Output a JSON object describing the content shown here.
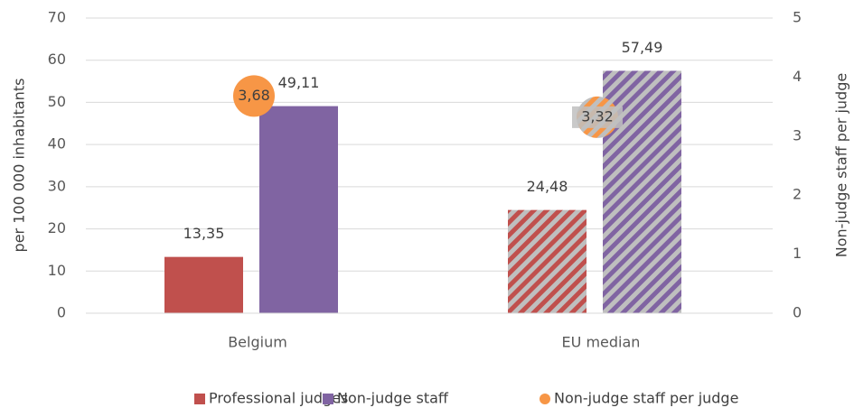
{
  "chart_data": {
    "type": "bar",
    "categories": [
      "Belgium",
      "EU median"
    ],
    "hatch": [
      false,
      true
    ],
    "series": [
      {
        "name": "Professional judges",
        "color": "#c0504d",
        "values": [
          13.35,
          24.48
        ],
        "value_labels": [
          "13,35",
          "24,48"
        ]
      },
      {
        "name": "Non-judge staff",
        "color": "#8064a2",
        "values": [
          49.11,
          57.49
        ],
        "value_labels": [
          "49,11",
          "57,49"
        ]
      },
      {
        "name": "Non-judge staff per judge",
        "type": "scatter",
        "axis": "y2",
        "color": "#f79646",
        "values": [
          3.68,
          3.32
        ],
        "value_labels": [
          "3,68",
          "3,32"
        ]
      }
    ],
    "ylabel": "per 100 000 inhabitants",
    "y2label": "Non-judge staff per judge",
    "ylim": [
      0,
      70
    ],
    "yticks": [
      0,
      10,
      20,
      30,
      40,
      50,
      60,
      70
    ],
    "y2lim": [
      0,
      5
    ],
    "y2ticks": [
      0,
      1,
      2,
      3,
      4,
      5
    ],
    "grid": true,
    "legend": "bottom"
  }
}
